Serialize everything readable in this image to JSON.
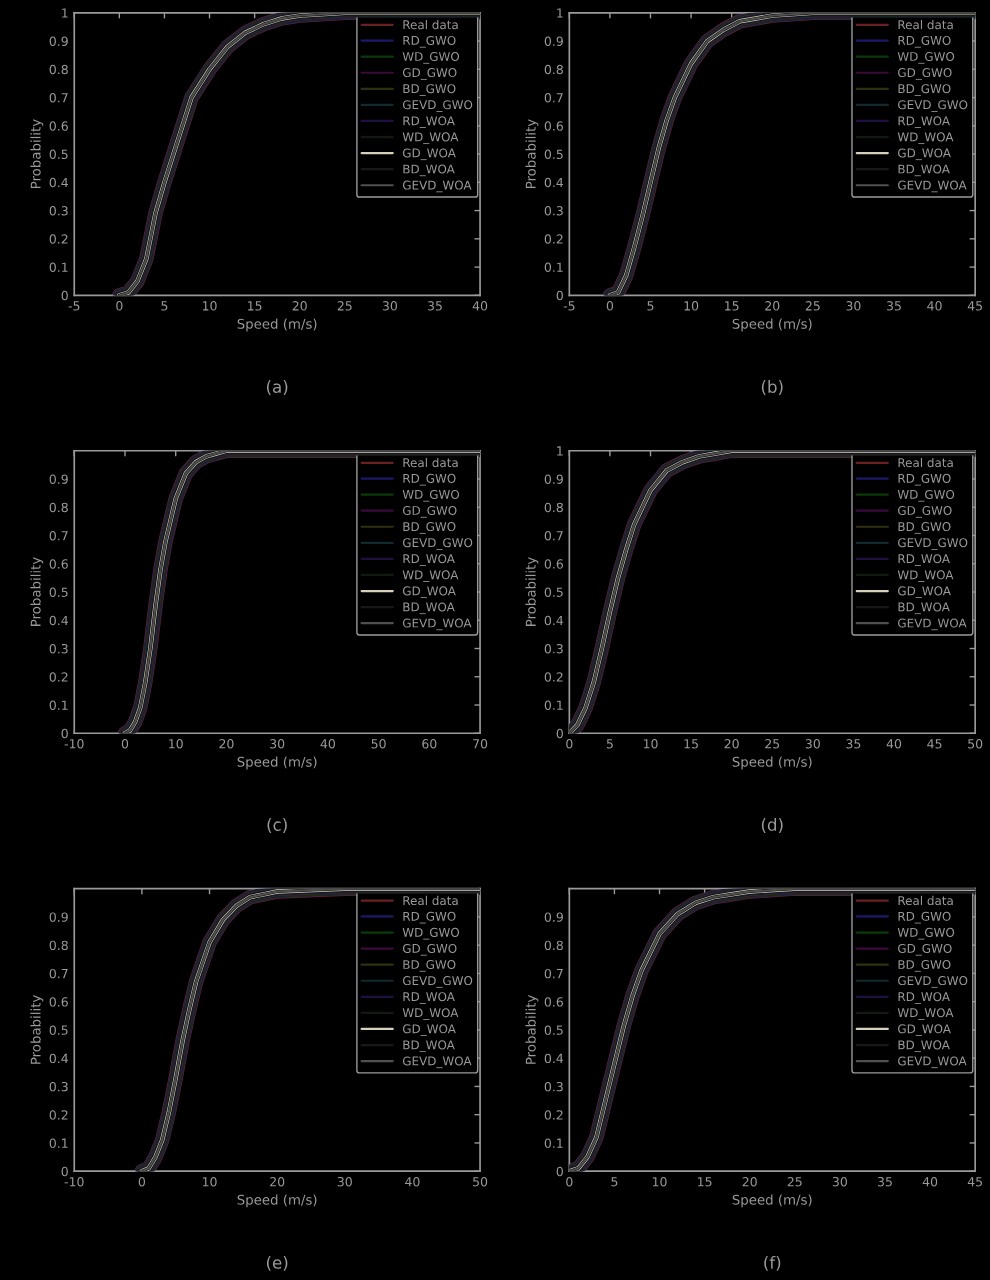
{
  "chart_data": [
    {
      "type": "line",
      "xlabel": "Speed (m/s)",
      "ylabel": "Probability",
      "annotations": [
        "(a)"
      ],
      "legend": "top right",
      "grid": false,
      "x": [
        0,
        1,
        2,
        3,
        4,
        5,
        6,
        7,
        8,
        10,
        12,
        14,
        16,
        18,
        20,
        25,
        40
      ],
      "xlim": [
        -5,
        40
      ],
      "xticks": [
        -5,
        0,
        5,
        10,
        15,
        20,
        25,
        30,
        35,
        40
      ],
      "ylim": [
        0,
        1
      ],
      "yticks": [
        0,
        0.1,
        0.2,
        0.3,
        0.4,
        0.5,
        0.6,
        0.7,
        0.8,
        0.9,
        1
      ],
      "series": [
        {
          "name": "Real data",
          "color": "#6b2020",
          "values": [
            0,
            0.01,
            0.05,
            0.13,
            0.29,
            0.4,
            0.5,
            0.6,
            0.7,
            0.8,
            0.88,
            0.93,
            0.96,
            0.98,
            0.99,
            1,
            1
          ]
        },
        {
          "name": "RD_GWO",
          "color": "#1a1a6b",
          "values": [
            0,
            0.01,
            0.05,
            0.13,
            0.29,
            0.4,
            0.5,
            0.6,
            0.7,
            0.8,
            0.88,
            0.93,
            0.96,
            0.98,
            0.99,
            1,
            1
          ]
        },
        {
          "name": "WD_GWO",
          "color": "#0a3a0a",
          "values": [
            0,
            0.01,
            0.05,
            0.13,
            0.29,
            0.4,
            0.5,
            0.6,
            0.7,
            0.8,
            0.88,
            0.93,
            0.96,
            0.98,
            0.99,
            1,
            1
          ]
        },
        {
          "name": "GD_GWO",
          "color": "#3a0a3a",
          "values": [
            0,
            0.01,
            0.05,
            0.13,
            0.29,
            0.4,
            0.5,
            0.6,
            0.7,
            0.8,
            0.88,
            0.93,
            0.96,
            0.98,
            0.99,
            1,
            1
          ]
        },
        {
          "name": "BD_GWO",
          "color": "#303010",
          "values": [
            0,
            0.01,
            0.05,
            0.13,
            0.29,
            0.4,
            0.5,
            0.6,
            0.7,
            0.8,
            0.88,
            0.93,
            0.96,
            0.98,
            0.99,
            1,
            1
          ]
        },
        {
          "name": "GEVD_GWO",
          "color": "#102a30",
          "values": [
            0,
            0.01,
            0.05,
            0.13,
            0.29,
            0.4,
            0.5,
            0.6,
            0.7,
            0.8,
            0.88,
            0.93,
            0.96,
            0.98,
            0.99,
            1,
            1
          ]
        },
        {
          "name": "RD_WOA",
          "color": "#201040",
          "values": [
            0,
            0.01,
            0.05,
            0.13,
            0.29,
            0.4,
            0.5,
            0.6,
            0.7,
            0.8,
            0.88,
            0.93,
            0.96,
            0.98,
            0.99,
            1,
            1
          ]
        },
        {
          "name": "WD_WOA",
          "color": "#101a10",
          "values": [
            0,
            0.01,
            0.05,
            0.13,
            0.29,
            0.4,
            0.5,
            0.6,
            0.7,
            0.8,
            0.88,
            0.93,
            0.96,
            0.98,
            0.99,
            1,
            1
          ]
        },
        {
          "name": "GD_WOA",
          "color": "#d8d0b8",
          "values": [
            0,
            0.01,
            0.05,
            0.13,
            0.29,
            0.4,
            0.5,
            0.6,
            0.7,
            0.8,
            0.88,
            0.93,
            0.96,
            0.98,
            0.99,
            1,
            1
          ]
        },
        {
          "name": "BD_WOA",
          "color": "#181818",
          "values": [
            0,
            0.01,
            0.05,
            0.13,
            0.29,
            0.4,
            0.5,
            0.6,
            0.7,
            0.8,
            0.88,
            0.93,
            0.96,
            0.98,
            0.99,
            1,
            1
          ]
        },
        {
          "name": "GEVD_WOA",
          "color": "#505050",
          "values": [
            0,
            0.01,
            0.05,
            0.13,
            0.29,
            0.4,
            0.5,
            0.6,
            0.7,
            0.8,
            0.88,
            0.93,
            0.96,
            0.98,
            0.99,
            1,
            1
          ]
        }
      ]
    },
    {
      "type": "line",
      "xlabel": "Speed (m/s)",
      "ylabel": "Probability",
      "annotations": [
        "(b)"
      ],
      "legend": "top right",
      "grid": false,
      "x": [
        0,
        1,
        2,
        3,
        4,
        5,
        6,
        7,
        8,
        10,
        12,
        14,
        16,
        18,
        20,
        25,
        45
      ],
      "xlim": [
        -5,
        45
      ],
      "xticks": [
        -5,
        0,
        5,
        10,
        15,
        20,
        25,
        30,
        35,
        40,
        45
      ],
      "ylim": [
        0,
        1
      ],
      "yticks": [
        0,
        0.1,
        0.2,
        0.3,
        0.4,
        0.5,
        0.6,
        0.7,
        0.8,
        0.9,
        1
      ],
      "series": [
        {
          "name": "Real data",
          "color": "#6b2020",
          "values": [
            0,
            0.01,
            0.07,
            0.17,
            0.28,
            0.4,
            0.52,
            0.62,
            0.7,
            0.82,
            0.9,
            0.94,
            0.97,
            0.98,
            0.99,
            1,
            1
          ]
        },
        {
          "name": "RD_GWO",
          "color": "#1a1a6b",
          "values": [
            0,
            0.01,
            0.07,
            0.17,
            0.28,
            0.4,
            0.52,
            0.62,
            0.7,
            0.82,
            0.9,
            0.94,
            0.97,
            0.98,
            0.99,
            1,
            1
          ]
        },
        {
          "name": "WD_GWO",
          "color": "#0a3a0a",
          "values": [
            0,
            0.01,
            0.07,
            0.17,
            0.28,
            0.4,
            0.52,
            0.62,
            0.7,
            0.82,
            0.9,
            0.94,
            0.97,
            0.98,
            0.99,
            1,
            1
          ]
        },
        {
          "name": "GD_GWO",
          "color": "#3a0a3a",
          "values": [
            0,
            0.01,
            0.07,
            0.17,
            0.28,
            0.4,
            0.52,
            0.62,
            0.7,
            0.82,
            0.9,
            0.94,
            0.97,
            0.98,
            0.99,
            1,
            1
          ]
        },
        {
          "name": "BD_GWO",
          "color": "#303010",
          "values": [
            0,
            0.01,
            0.07,
            0.17,
            0.28,
            0.4,
            0.52,
            0.62,
            0.7,
            0.82,
            0.9,
            0.94,
            0.97,
            0.98,
            0.99,
            1,
            1
          ]
        },
        {
          "name": "GEVD_GWO",
          "color": "#102a30",
          "values": [
            0,
            0.01,
            0.07,
            0.17,
            0.28,
            0.4,
            0.52,
            0.62,
            0.7,
            0.82,
            0.9,
            0.94,
            0.97,
            0.98,
            0.99,
            1,
            1
          ]
        },
        {
          "name": "RD_WOA",
          "color": "#201040",
          "values": [
            0,
            0.01,
            0.07,
            0.17,
            0.28,
            0.4,
            0.52,
            0.62,
            0.7,
            0.82,
            0.9,
            0.94,
            0.97,
            0.98,
            0.99,
            1,
            1
          ]
        },
        {
          "name": "WD_WOA",
          "color": "#101a10",
          "values": [
            0,
            0.01,
            0.07,
            0.17,
            0.28,
            0.4,
            0.52,
            0.62,
            0.7,
            0.82,
            0.9,
            0.94,
            0.97,
            0.98,
            0.99,
            1,
            1
          ]
        },
        {
          "name": "GD_WOA",
          "color": "#d8d0b8",
          "values": [
            0,
            0.01,
            0.07,
            0.17,
            0.28,
            0.4,
            0.52,
            0.62,
            0.7,
            0.82,
            0.9,
            0.94,
            0.97,
            0.98,
            0.99,
            1,
            1
          ]
        },
        {
          "name": "BD_WOA",
          "color": "#181818",
          "values": [
            0,
            0.01,
            0.07,
            0.17,
            0.28,
            0.4,
            0.52,
            0.62,
            0.7,
            0.82,
            0.9,
            0.94,
            0.97,
            0.98,
            0.99,
            1,
            1
          ]
        },
        {
          "name": "GEVD_WOA",
          "color": "#505050",
          "values": [
            0,
            0.01,
            0.07,
            0.17,
            0.28,
            0.4,
            0.52,
            0.62,
            0.7,
            0.82,
            0.9,
            0.94,
            0.97,
            0.98,
            0.99,
            1,
            1
          ]
        }
      ]
    },
    {
      "type": "line",
      "xlabel": "Speed (m/s)",
      "ylabel": "Probability",
      "annotations": [
        "(c)"
      ],
      "legend": "top right",
      "grid": false,
      "x": [
        0,
        1,
        2,
        3,
        4,
        5,
        6,
        7,
        8,
        10,
        12,
        14,
        16,
        18,
        20,
        30,
        70
      ],
      "xlim": [
        -10,
        70
      ],
      "xticks": [
        -10,
        0,
        10,
        20,
        30,
        40,
        50,
        60,
        70
      ],
      "ylim": [
        0,
        1
      ],
      "yticks": [
        0,
        0.1,
        0.2,
        0.3,
        0.4,
        0.5,
        0.6,
        0.7,
        0.8,
        0.9
      ],
      "series": [
        {
          "name": "Real data",
          "color": "#6b2020",
          "values": [
            0,
            0.01,
            0.04,
            0.09,
            0.18,
            0.3,
            0.45,
            0.58,
            0.68,
            0.83,
            0.92,
            0.96,
            0.98,
            0.99,
            1,
            1,
            1
          ]
        },
        {
          "name": "RD_GWO",
          "color": "#1a1a6b",
          "values": [
            0,
            0.01,
            0.04,
            0.09,
            0.18,
            0.3,
            0.45,
            0.58,
            0.68,
            0.83,
            0.92,
            0.96,
            0.98,
            0.99,
            1,
            1,
            1
          ]
        },
        {
          "name": "WD_GWO",
          "color": "#0a3a0a",
          "values": [
            0,
            0.01,
            0.04,
            0.09,
            0.18,
            0.3,
            0.45,
            0.58,
            0.68,
            0.83,
            0.92,
            0.96,
            0.98,
            0.99,
            1,
            1,
            1
          ]
        },
        {
          "name": "GD_GWO",
          "color": "#3a0a3a",
          "values": [
            0,
            0.01,
            0.04,
            0.09,
            0.18,
            0.3,
            0.45,
            0.58,
            0.68,
            0.83,
            0.92,
            0.96,
            0.98,
            0.99,
            1,
            1,
            1
          ]
        },
        {
          "name": "BD_GWO",
          "color": "#303010",
          "values": [
            0,
            0.01,
            0.04,
            0.09,
            0.18,
            0.3,
            0.45,
            0.58,
            0.68,
            0.83,
            0.92,
            0.96,
            0.98,
            0.99,
            1,
            1,
            1
          ]
        },
        {
          "name": "GEVD_GWO",
          "color": "#102a30",
          "values": [
            0,
            0.01,
            0.04,
            0.09,
            0.18,
            0.3,
            0.45,
            0.58,
            0.68,
            0.83,
            0.92,
            0.96,
            0.98,
            0.99,
            1,
            1,
            1
          ]
        },
        {
          "name": "RD_WOA",
          "color": "#201040",
          "values": [
            0,
            0.01,
            0.04,
            0.09,
            0.18,
            0.3,
            0.45,
            0.58,
            0.68,
            0.83,
            0.92,
            0.96,
            0.98,
            0.99,
            1,
            1,
            1
          ]
        },
        {
          "name": "WD_WOA",
          "color": "#101a10",
          "values": [
            0,
            0.01,
            0.04,
            0.09,
            0.18,
            0.3,
            0.45,
            0.58,
            0.68,
            0.83,
            0.92,
            0.96,
            0.98,
            0.99,
            1,
            1,
            1
          ]
        },
        {
          "name": "GD_WOA",
          "color": "#d8d0b8",
          "values": [
            0,
            0.01,
            0.04,
            0.09,
            0.18,
            0.3,
            0.45,
            0.58,
            0.68,
            0.83,
            0.92,
            0.96,
            0.98,
            0.99,
            1,
            1,
            1
          ]
        },
        {
          "name": "BD_WOA",
          "color": "#181818",
          "values": [
            0,
            0.01,
            0.04,
            0.09,
            0.18,
            0.3,
            0.45,
            0.58,
            0.68,
            0.83,
            0.92,
            0.96,
            0.98,
            0.99,
            1,
            1,
            1
          ]
        },
        {
          "name": "GEVD_WOA",
          "color": "#505050",
          "values": [
            0,
            0.01,
            0.04,
            0.09,
            0.18,
            0.3,
            0.45,
            0.58,
            0.68,
            0.83,
            0.92,
            0.96,
            0.98,
            0.99,
            1,
            1,
            1
          ]
        }
      ]
    },
    {
      "type": "line",
      "xlabel": "Speed (m/s)",
      "ylabel": "Probability",
      "annotations": [
        "(d)"
      ],
      "legend": "top right",
      "grid": false,
      "x": [
        0,
        1,
        2,
        3,
        4,
        5,
        6,
        7,
        8,
        10,
        12,
        14,
        16,
        18,
        20,
        25,
        50
      ],
      "xlim": [
        0,
        50
      ],
      "xticks": [
        0,
        5,
        10,
        15,
        20,
        25,
        30,
        35,
        40,
        45,
        50
      ],
      "ylim": [
        0,
        1
      ],
      "yticks": [
        0,
        0.1,
        0.2,
        0.3,
        0.4,
        0.5,
        0.6,
        0.7,
        0.8,
        0.9,
        1
      ],
      "series": [
        {
          "name": "Real data",
          "color": "#6b2020",
          "values": [
            0,
            0.03,
            0.09,
            0.18,
            0.3,
            0.43,
            0.55,
            0.65,
            0.74,
            0.86,
            0.93,
            0.96,
            0.98,
            0.99,
            1,
            1,
            1
          ]
        },
        {
          "name": "RD_GWO",
          "color": "#1a1a6b",
          "values": [
            0,
            0.03,
            0.09,
            0.18,
            0.3,
            0.43,
            0.55,
            0.65,
            0.74,
            0.86,
            0.93,
            0.96,
            0.98,
            0.99,
            1,
            1,
            1
          ]
        },
        {
          "name": "WD_GWO",
          "color": "#0a3a0a",
          "values": [
            0,
            0.03,
            0.09,
            0.18,
            0.3,
            0.43,
            0.55,
            0.65,
            0.74,
            0.86,
            0.93,
            0.96,
            0.98,
            0.99,
            1,
            1,
            1
          ]
        },
        {
          "name": "GD_GWO",
          "color": "#3a0a3a",
          "values": [
            0,
            0.03,
            0.09,
            0.18,
            0.3,
            0.43,
            0.55,
            0.65,
            0.74,
            0.86,
            0.93,
            0.96,
            0.98,
            0.99,
            1,
            1,
            1
          ]
        },
        {
          "name": "BD_GWO",
          "color": "#303010",
          "values": [
            0,
            0.03,
            0.09,
            0.18,
            0.3,
            0.43,
            0.55,
            0.65,
            0.74,
            0.86,
            0.93,
            0.96,
            0.98,
            0.99,
            1,
            1,
            1
          ]
        },
        {
          "name": "GEVD_GWO",
          "color": "#102a30",
          "values": [
            0,
            0.03,
            0.09,
            0.18,
            0.3,
            0.43,
            0.55,
            0.65,
            0.74,
            0.86,
            0.93,
            0.96,
            0.98,
            0.99,
            1,
            1,
            1
          ]
        },
        {
          "name": "RD_WOA",
          "color": "#201040",
          "values": [
            0,
            0.03,
            0.09,
            0.18,
            0.3,
            0.43,
            0.55,
            0.65,
            0.74,
            0.86,
            0.93,
            0.96,
            0.98,
            0.99,
            1,
            1,
            1
          ]
        },
        {
          "name": "WD_WOA",
          "color": "#101a10",
          "values": [
            0,
            0.03,
            0.09,
            0.18,
            0.3,
            0.43,
            0.55,
            0.65,
            0.74,
            0.86,
            0.93,
            0.96,
            0.98,
            0.99,
            1,
            1,
            1
          ]
        },
        {
          "name": "GD_WOA",
          "color": "#d8d0b8",
          "values": [
            0,
            0.03,
            0.09,
            0.18,
            0.3,
            0.43,
            0.55,
            0.65,
            0.74,
            0.86,
            0.93,
            0.96,
            0.98,
            0.99,
            1,
            1,
            1
          ]
        },
        {
          "name": "BD_WOA",
          "color": "#181818",
          "values": [
            0,
            0.03,
            0.09,
            0.18,
            0.3,
            0.43,
            0.55,
            0.65,
            0.74,
            0.86,
            0.93,
            0.96,
            0.98,
            0.99,
            1,
            1,
            1
          ]
        },
        {
          "name": "GEVD_WOA",
          "color": "#505050",
          "values": [
            0,
            0.03,
            0.09,
            0.18,
            0.3,
            0.43,
            0.55,
            0.65,
            0.74,
            0.86,
            0.93,
            0.96,
            0.98,
            0.99,
            1,
            1,
            1
          ]
        }
      ]
    },
    {
      "type": "line",
      "xlabel": "Speed (m/s)",
      "ylabel": "Probability",
      "annotations": [
        "(e)"
      ],
      "legend": "top right",
      "grid": false,
      "x": [
        0,
        1,
        2,
        3,
        4,
        5,
        6,
        7,
        8,
        10,
        12,
        14,
        16,
        18,
        20,
        30,
        50
      ],
      "xlim": [
        -10,
        50
      ],
      "xticks": [
        -10,
        0,
        10,
        20,
        30,
        40,
        50
      ],
      "ylim": [
        0,
        1
      ],
      "yticks": [
        0,
        0.1,
        0.2,
        0.3,
        0.4,
        0.5,
        0.6,
        0.7,
        0.8,
        0.9
      ],
      "series": [
        {
          "name": "Real data",
          "color": "#6b2020",
          "values": [
            0,
            0.01,
            0.05,
            0.11,
            0.21,
            0.33,
            0.46,
            0.57,
            0.67,
            0.81,
            0.89,
            0.94,
            0.97,
            0.98,
            0.99,
            1,
            1
          ]
        },
        {
          "name": "RD_GWO",
          "color": "#1a1a6b",
          "values": [
            0,
            0.01,
            0.05,
            0.11,
            0.21,
            0.33,
            0.46,
            0.57,
            0.67,
            0.81,
            0.89,
            0.94,
            0.97,
            0.98,
            0.99,
            1,
            1
          ]
        },
        {
          "name": "WD_GWO",
          "color": "#0a3a0a",
          "values": [
            0,
            0.01,
            0.05,
            0.11,
            0.21,
            0.33,
            0.46,
            0.57,
            0.67,
            0.81,
            0.89,
            0.94,
            0.97,
            0.98,
            0.99,
            1,
            1
          ]
        },
        {
          "name": "GD_GWO",
          "color": "#3a0a3a",
          "values": [
            0,
            0.01,
            0.05,
            0.11,
            0.21,
            0.33,
            0.46,
            0.57,
            0.67,
            0.81,
            0.89,
            0.94,
            0.97,
            0.98,
            0.99,
            1,
            1
          ]
        },
        {
          "name": "BD_GWO",
          "color": "#303010",
          "values": [
            0,
            0.01,
            0.05,
            0.11,
            0.21,
            0.33,
            0.46,
            0.57,
            0.67,
            0.81,
            0.89,
            0.94,
            0.97,
            0.98,
            0.99,
            1,
            1
          ]
        },
        {
          "name": "GEVD_GWO",
          "color": "#102a30",
          "values": [
            0,
            0.01,
            0.05,
            0.11,
            0.21,
            0.33,
            0.46,
            0.57,
            0.67,
            0.81,
            0.89,
            0.94,
            0.97,
            0.98,
            0.99,
            1,
            1
          ]
        },
        {
          "name": "RD_WOA",
          "color": "#201040",
          "values": [
            0,
            0.01,
            0.05,
            0.11,
            0.21,
            0.33,
            0.46,
            0.57,
            0.67,
            0.81,
            0.89,
            0.94,
            0.97,
            0.98,
            0.99,
            1,
            1
          ]
        },
        {
          "name": "WD_WOA",
          "color": "#101a10",
          "values": [
            0,
            0.01,
            0.05,
            0.11,
            0.21,
            0.33,
            0.46,
            0.57,
            0.67,
            0.81,
            0.89,
            0.94,
            0.97,
            0.98,
            0.99,
            1,
            1
          ]
        },
        {
          "name": "GD_WOA",
          "color": "#d8d0b8",
          "values": [
            0,
            0.01,
            0.05,
            0.11,
            0.21,
            0.33,
            0.46,
            0.57,
            0.67,
            0.81,
            0.89,
            0.94,
            0.97,
            0.98,
            0.99,
            1,
            1
          ]
        },
        {
          "name": "BD_WOA",
          "color": "#181818",
          "values": [
            0,
            0.01,
            0.05,
            0.11,
            0.21,
            0.33,
            0.46,
            0.57,
            0.67,
            0.81,
            0.89,
            0.94,
            0.97,
            0.98,
            0.99,
            1,
            1
          ]
        },
        {
          "name": "GEVD_WOA",
          "color": "#505050",
          "values": [
            0,
            0.01,
            0.05,
            0.11,
            0.21,
            0.33,
            0.46,
            0.57,
            0.67,
            0.81,
            0.89,
            0.94,
            0.97,
            0.98,
            0.99,
            1,
            1
          ]
        }
      ]
    },
    {
      "type": "line",
      "xlabel": "Speed (m/s)",
      "ylabel": "Probability",
      "annotations": [
        "(f)"
      ],
      "legend": "top right",
      "grid": false,
      "x": [
        0,
        1,
        2,
        3,
        4,
        5,
        6,
        7,
        8,
        10,
        12,
        14,
        16,
        18,
        20,
        25,
        45
      ],
      "xlim": [
        0,
        45
      ],
      "xticks": [
        0,
        5,
        10,
        15,
        20,
        25,
        30,
        35,
        40,
        45
      ],
      "ylim": [
        0,
        1
      ],
      "yticks": [
        0,
        0.1,
        0.2,
        0.3,
        0.4,
        0.5,
        0.6,
        0.7,
        0.8,
        0.9
      ],
      "series": [
        {
          "name": "Real data",
          "color": "#6b2020",
          "values": [
            0,
            0.01,
            0.05,
            0.12,
            0.25,
            0.38,
            0.51,
            0.62,
            0.71,
            0.84,
            0.91,
            0.95,
            0.97,
            0.98,
            0.99,
            1,
            1
          ]
        },
        {
          "name": "RD_GWO",
          "color": "#1a1a6b",
          "values": [
            0,
            0.01,
            0.05,
            0.12,
            0.25,
            0.38,
            0.51,
            0.62,
            0.71,
            0.84,
            0.91,
            0.95,
            0.97,
            0.98,
            0.99,
            1,
            1
          ]
        },
        {
          "name": "WD_GWO",
          "color": "#0a3a0a",
          "values": [
            0,
            0.01,
            0.05,
            0.12,
            0.25,
            0.38,
            0.51,
            0.62,
            0.71,
            0.84,
            0.91,
            0.95,
            0.97,
            0.98,
            0.99,
            1,
            1
          ]
        },
        {
          "name": "GD_GWO",
          "color": "#3a0a3a",
          "values": [
            0,
            0.01,
            0.05,
            0.12,
            0.25,
            0.38,
            0.51,
            0.62,
            0.71,
            0.84,
            0.91,
            0.95,
            0.97,
            0.98,
            0.99,
            1,
            1
          ]
        },
        {
          "name": "BD_GWO",
          "color": "#303010",
          "values": [
            0,
            0.01,
            0.05,
            0.12,
            0.25,
            0.38,
            0.51,
            0.62,
            0.71,
            0.84,
            0.91,
            0.95,
            0.97,
            0.98,
            0.99,
            1,
            1
          ]
        },
        {
          "name": "GEVD_GWO",
          "color": "#102a30",
          "values": [
            0,
            0.01,
            0.05,
            0.12,
            0.25,
            0.38,
            0.51,
            0.62,
            0.71,
            0.84,
            0.91,
            0.95,
            0.97,
            0.98,
            0.99,
            1,
            1
          ]
        },
        {
          "name": "RD_WOA",
          "color": "#201040",
          "values": [
            0,
            0.01,
            0.05,
            0.12,
            0.25,
            0.38,
            0.51,
            0.62,
            0.71,
            0.84,
            0.91,
            0.95,
            0.97,
            0.98,
            0.99,
            1,
            1
          ]
        },
        {
          "name": "WD_WOA",
          "color": "#101a10",
          "values": [
            0,
            0.01,
            0.05,
            0.12,
            0.25,
            0.38,
            0.51,
            0.62,
            0.71,
            0.84,
            0.91,
            0.95,
            0.97,
            0.98,
            0.99,
            1,
            1
          ]
        },
        {
          "name": "GD_WOA",
          "color": "#d8d0b8",
          "values": [
            0,
            0.01,
            0.05,
            0.12,
            0.25,
            0.38,
            0.51,
            0.62,
            0.71,
            0.84,
            0.91,
            0.95,
            0.97,
            0.98,
            0.99,
            1,
            1
          ]
        },
        {
          "name": "BD_WOA",
          "color": "#181818",
          "values": [
            0,
            0.01,
            0.05,
            0.12,
            0.25,
            0.38,
            0.51,
            0.62,
            0.71,
            0.84,
            0.91,
            0.95,
            0.97,
            0.98,
            0.99,
            1,
            1
          ]
        },
        {
          "name": "GEVD_WOA",
          "color": "#505050",
          "values": [
            0,
            0.01,
            0.05,
            0.12,
            0.25,
            0.38,
            0.51,
            0.62,
            0.71,
            0.84,
            0.91,
            0.95,
            0.97,
            0.98,
            0.99,
            1,
            1
          ]
        }
      ]
    }
  ]
}
